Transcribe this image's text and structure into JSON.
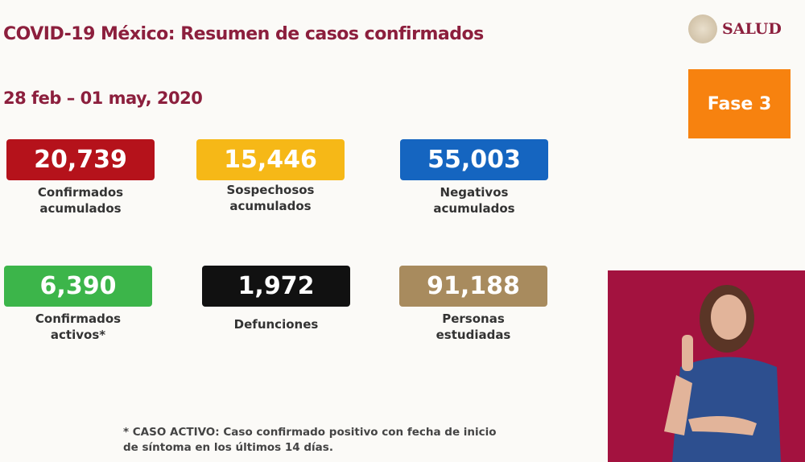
{
  "header": {
    "title": "COVID-19 México: Resumen de casos confirmados",
    "date_range": "28 feb – 01 may, 2020"
  },
  "logo": {
    "text": "SALUD"
  },
  "phase": {
    "label": "Fase 3",
    "color": "#f7820f"
  },
  "cards": [
    {
      "value": "20,739",
      "label_1": "Confirmados",
      "label_2": "acumulados",
      "color": "#b5121b"
    },
    {
      "value": "15,446",
      "label_1": "Sospechosos",
      "label_2": "acumulados",
      "color": "#f6b817"
    },
    {
      "value": "55,003",
      "label_1": "Negativos",
      "label_2": "acumulados",
      "color": "#1565c0"
    },
    {
      "value": "6,390",
      "label_1": "Confirmados",
      "label_2": "activos*",
      "color": "#3cb54a"
    },
    {
      "value": "1,972",
      "label_1": "Defunciones",
      "label_2": "",
      "color": "#111111"
    },
    {
      "value": "91,188",
      "label_1": "Personas",
      "label_2": "estudiadas",
      "color": "#a88b5e"
    }
  ],
  "footnote": {
    "line_1": "* CASO ACTIVO: Caso confirmado positivo con fecha de inicio",
    "line_2": "de síntoma en los últimos 14 días."
  }
}
